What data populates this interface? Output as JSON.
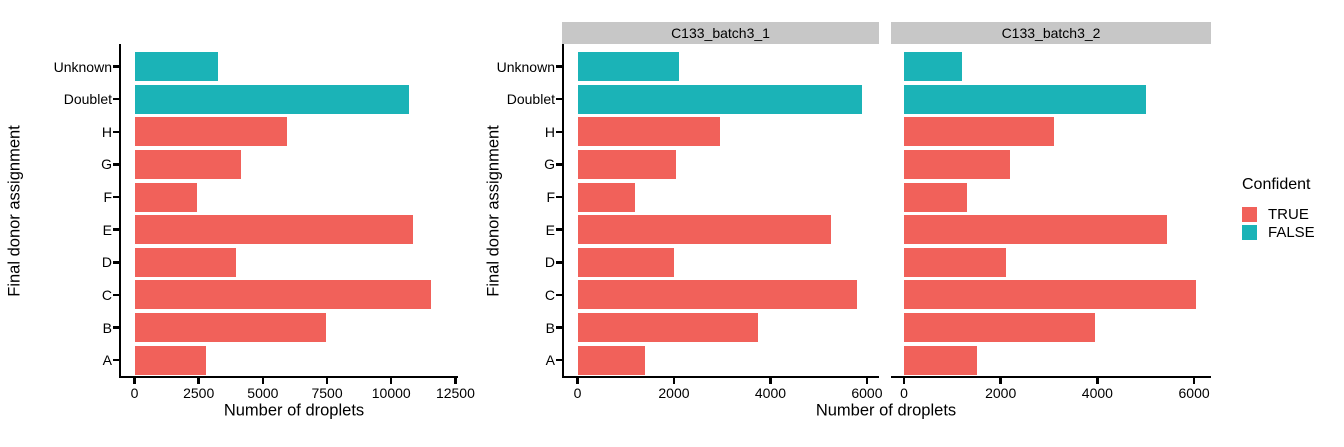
{
  "palette": {
    "TRUE": "#F1615A",
    "FALSE": "#1BB3B7",
    "strip_bg": "#C7C7C7",
    "axis": "#000000"
  },
  "chart_data": {
    "type": "bar",
    "orientation": "horizontal",
    "xlabel": "Number of droplets",
    "ylabel": "Final donor assignment",
    "grid": "off",
    "legend_position": "right",
    "categories": [
      "Unknown",
      "Doublet",
      "H",
      "G",
      "F",
      "E",
      "D",
      "C",
      "B",
      "A"
    ],
    "confident": [
      "FALSE",
      "FALSE",
      "TRUE",
      "TRUE",
      "TRUE",
      "TRUE",
      "TRUE",
      "TRUE",
      "TRUE",
      "TRUE"
    ],
    "legend": {
      "title": "Confident",
      "entries": [
        {
          "label": "TRUE"
        },
        {
          "label": "FALSE"
        }
      ]
    },
    "panels": [
      {
        "strip_label": "",
        "xlim": [
          0,
          12600
        ],
        "xticks": [
          0,
          2500,
          5000,
          7500,
          10000,
          12500
        ],
        "values": [
          3250,
          10700,
          5950,
          4150,
          2450,
          10850,
          3950,
          11550,
          7450,
          2800
        ]
      },
      {
        "strip_label": "C133_batch3_1",
        "xlim": [
          0,
          6250
        ],
        "xticks": [
          0,
          2000,
          4000,
          6000
        ],
        "values": [
          2100,
          5900,
          2950,
          2050,
          1200,
          5250,
          2000,
          5800,
          3750,
          1400
        ]
      },
      {
        "strip_label": "C133_batch3_2",
        "xlim": [
          0,
          6350
        ],
        "xticks": [
          0,
          2000,
          4000,
          6000
        ],
        "values": [
          1200,
          5000,
          3100,
          2200,
          1300,
          5450,
          2100,
          6050,
          3950,
          1500
        ]
      }
    ]
  }
}
